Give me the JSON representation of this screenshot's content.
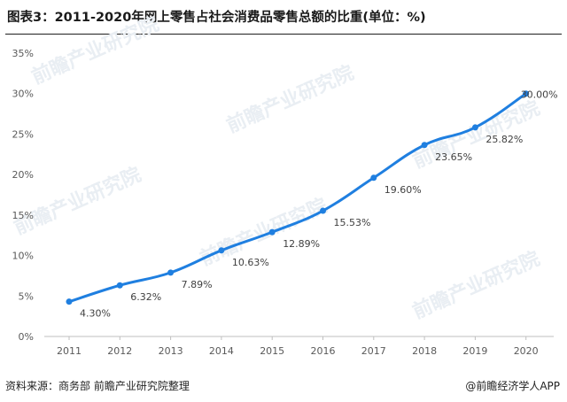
{
  "header": {
    "title": "图表3：2011-2020年网上零售占社会消费品零售总额的比重(单位：%)"
  },
  "footer": {
    "source": "资料来源：商务部 前瞻产业研究院整理",
    "brand": "@前瞻经济学人APP"
  },
  "watermark": {
    "text": "前瞻产业研究院"
  },
  "chart_data": {
    "type": "line",
    "title": "图表3：2011-2020年网上零售占社会消费品零售总额的比重(单位：%)",
    "xlabel": "",
    "ylabel": "",
    "categories": [
      "2011",
      "2012",
      "2013",
      "2014",
      "2015",
      "2016",
      "2017",
      "2018",
      "2019",
      "2020"
    ],
    "series": [
      {
        "values": [
          4.3,
          6.32,
          7.89,
          10.63,
          12.89,
          15.53,
          19.6,
          23.65,
          25.82,
          30.0
        ],
        "labels": [
          "4.30%",
          "6.32%",
          "7.89%",
          "10.63%",
          "12.89%",
          "15.53%",
          "19.60%",
          "23.65%",
          "25.82%",
          "30.00%"
        ],
        "color": "#1f7fe0"
      }
    ],
    "ylim": [
      0,
      35
    ],
    "yticks": [
      0,
      5,
      10,
      15,
      20,
      25,
      30,
      35
    ],
    "ytick_labels": [
      "0%",
      "5%",
      "10%",
      "15%",
      "20%",
      "25%",
      "30%",
      "35%"
    ],
    "grid": false,
    "axis_color": "#bfbfbf"
  }
}
